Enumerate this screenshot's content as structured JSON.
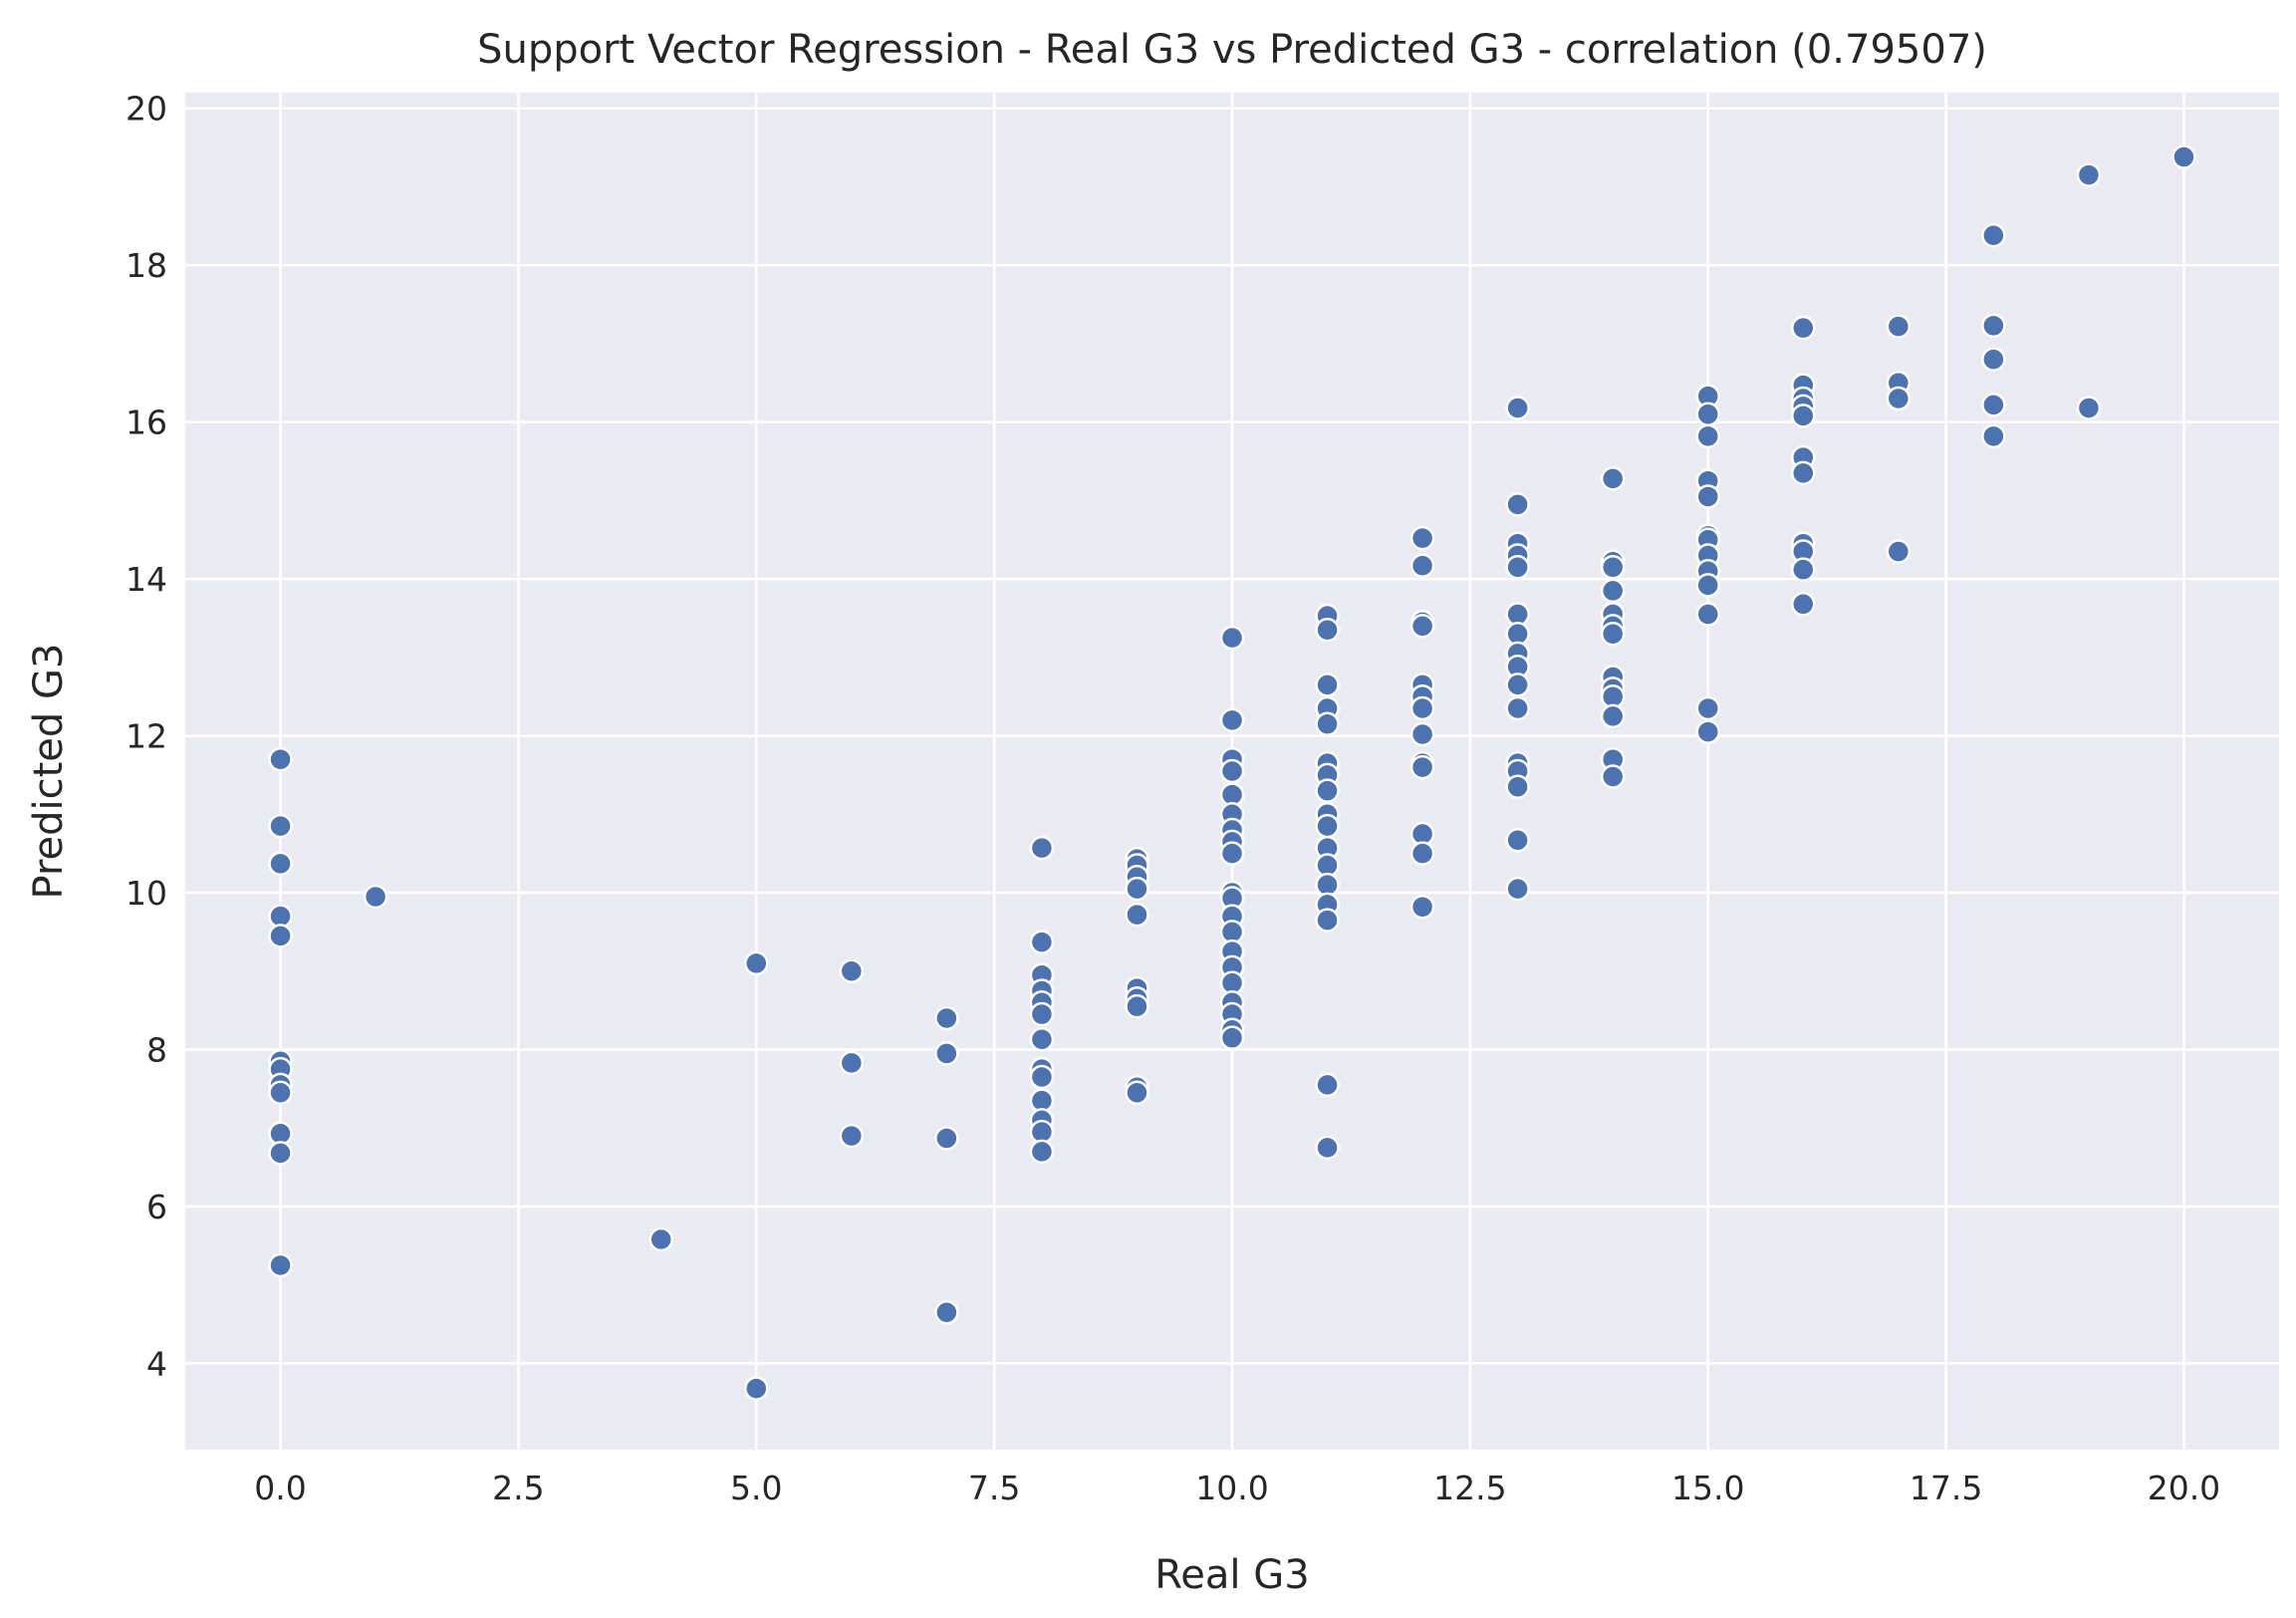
{
  "chart_data": {
    "type": "scatter",
    "title": "Support Vector Regression - Real G3 vs Predicted G3 - correlation (0.79507)",
    "xlabel": "Real G3",
    "ylabel": "Predicted G3",
    "xlim": [
      -1,
      21
    ],
    "ylim": [
      2.9,
      20.2
    ],
    "xticks": [
      0.0,
      2.5,
      5.0,
      7.5,
      10.0,
      12.5,
      15.0,
      17.5,
      20.0
    ],
    "xtick_labels": [
      "0.0",
      "2.5",
      "5.0",
      "7.5",
      "10.0",
      "12.5",
      "15.0",
      "17.5",
      "20.0"
    ],
    "yticks": [
      4,
      6,
      8,
      10,
      12,
      14,
      16,
      18,
      20
    ],
    "ytick_labels": [
      "4",
      "6",
      "8",
      "10",
      "12",
      "14",
      "16",
      "18",
      "20"
    ],
    "grid": true,
    "background": "#eaeaf2",
    "grid_color": "#ffffff",
    "point_color": "#4c72b0",
    "points": [
      [
        0,
        11.7
      ],
      [
        0,
        10.85
      ],
      [
        0,
        10.37
      ],
      [
        0,
        9.7
      ],
      [
        0,
        9.45
      ],
      [
        0,
        7.85
      ],
      [
        0,
        7.75
      ],
      [
        0,
        7.55
      ],
      [
        0,
        7.45
      ],
      [
        0,
        6.93
      ],
      [
        0,
        6.68
      ],
      [
        0,
        5.25
      ],
      [
        1,
        9.95
      ],
      [
        4,
        5.58
      ],
      [
        5,
        9.1
      ],
      [
        5,
        3.68
      ],
      [
        6,
        9.0
      ],
      [
        6,
        7.83
      ],
      [
        6,
        6.9
      ],
      [
        7,
        8.4
      ],
      [
        7,
        7.95
      ],
      [
        7,
        6.87
      ],
      [
        7,
        4.65
      ],
      [
        8,
        10.57
      ],
      [
        8,
        9.37
      ],
      [
        8,
        8.95
      ],
      [
        8,
        8.75
      ],
      [
        8,
        8.6
      ],
      [
        8,
        8.45
      ],
      [
        8,
        8.13
      ],
      [
        8,
        7.75
      ],
      [
        8,
        7.65
      ],
      [
        8,
        7.35
      ],
      [
        8,
        7.1
      ],
      [
        8,
        6.95
      ],
      [
        8,
        6.7
      ],
      [
        9,
        10.43
      ],
      [
        9,
        10.35
      ],
      [
        9,
        10.2
      ],
      [
        9,
        10.05
      ],
      [
        9,
        9.72
      ],
      [
        9,
        8.78
      ],
      [
        9,
        8.65
      ],
      [
        9,
        8.55
      ],
      [
        9,
        7.52
      ],
      [
        9,
        7.45
      ],
      [
        10,
        13.25
      ],
      [
        10,
        12.2
      ],
      [
        10,
        11.7
      ],
      [
        10,
        11.55
      ],
      [
        10,
        11.25
      ],
      [
        10,
        11.0
      ],
      [
        10,
        10.8
      ],
      [
        10,
        10.65
      ],
      [
        10,
        10.5
      ],
      [
        10,
        10.0
      ],
      [
        10,
        9.93
      ],
      [
        10,
        9.7
      ],
      [
        10,
        9.5
      ],
      [
        10,
        9.25
      ],
      [
        10,
        9.05
      ],
      [
        10,
        8.85
      ],
      [
        10,
        8.6
      ],
      [
        10,
        8.45
      ],
      [
        10,
        8.25
      ],
      [
        10,
        8.15
      ],
      [
        11,
        13.53
      ],
      [
        11,
        13.35
      ],
      [
        11,
        12.65
      ],
      [
        11,
        12.35
      ],
      [
        11,
        12.15
      ],
      [
        11,
        11.65
      ],
      [
        11,
        11.5
      ],
      [
        11,
        11.3
      ],
      [
        11,
        11.0
      ],
      [
        11,
        10.85
      ],
      [
        11,
        10.57
      ],
      [
        11,
        10.35
      ],
      [
        11,
        10.1
      ],
      [
        11,
        9.85
      ],
      [
        11,
        9.65
      ],
      [
        11,
        7.55
      ],
      [
        11,
        6.75
      ],
      [
        12,
        14.52
      ],
      [
        12,
        14.17
      ],
      [
        12,
        13.45
      ],
      [
        12,
        13.4
      ],
      [
        12,
        12.65
      ],
      [
        12,
        12.5
      ],
      [
        12,
        12.35
      ],
      [
        12,
        12.02
      ],
      [
        12,
        11.65
      ],
      [
        12,
        11.6
      ],
      [
        12,
        10.75
      ],
      [
        12,
        10.5
      ],
      [
        12,
        9.82
      ],
      [
        13,
        16.18
      ],
      [
        13,
        14.95
      ],
      [
        13,
        14.45
      ],
      [
        13,
        14.3
      ],
      [
        13,
        14.15
      ],
      [
        13,
        13.55
      ],
      [
        13,
        13.3
      ],
      [
        13,
        13.05
      ],
      [
        13,
        12.88
      ],
      [
        13,
        12.65
      ],
      [
        13,
        12.35
      ],
      [
        13,
        11.65
      ],
      [
        13,
        11.55
      ],
      [
        13,
        11.35
      ],
      [
        13,
        10.67
      ],
      [
        13,
        10.05
      ],
      [
        14,
        15.28
      ],
      [
        14,
        14.22
      ],
      [
        14,
        14.15
      ],
      [
        14,
        13.85
      ],
      [
        14,
        13.55
      ],
      [
        14,
        13.4
      ],
      [
        14,
        13.3
      ],
      [
        14,
        12.75
      ],
      [
        14,
        12.6
      ],
      [
        14,
        12.5
      ],
      [
        14,
        12.25
      ],
      [
        14,
        11.7
      ],
      [
        14,
        11.48
      ],
      [
        15,
        16.33
      ],
      [
        15,
        16.1
      ],
      [
        15,
        15.82
      ],
      [
        15,
        15.25
      ],
      [
        15,
        15.05
      ],
      [
        15,
        14.55
      ],
      [
        15,
        14.5
      ],
      [
        15,
        14.3
      ],
      [
        15,
        14.1
      ],
      [
        15,
        13.92
      ],
      [
        15,
        13.55
      ],
      [
        15,
        12.35
      ],
      [
        15,
        12.05
      ],
      [
        16,
        17.2
      ],
      [
        16,
        16.47
      ],
      [
        16,
        16.3
      ],
      [
        16,
        16.2
      ],
      [
        16,
        16.08
      ],
      [
        16,
        15.55
      ],
      [
        16,
        15.35
      ],
      [
        16,
        14.45
      ],
      [
        16,
        14.35
      ],
      [
        16,
        14.12
      ],
      [
        16,
        13.68
      ],
      [
        17,
        17.22
      ],
      [
        17,
        16.5
      ],
      [
        17,
        16.3
      ],
      [
        17,
        14.35
      ],
      [
        18,
        18.38
      ],
      [
        18,
        17.23
      ],
      [
        18,
        16.8
      ],
      [
        18,
        16.22
      ],
      [
        18,
        15.82
      ],
      [
        19,
        19.15
      ],
      [
        19,
        16.18
      ],
      [
        20,
        19.38
      ]
    ]
  }
}
